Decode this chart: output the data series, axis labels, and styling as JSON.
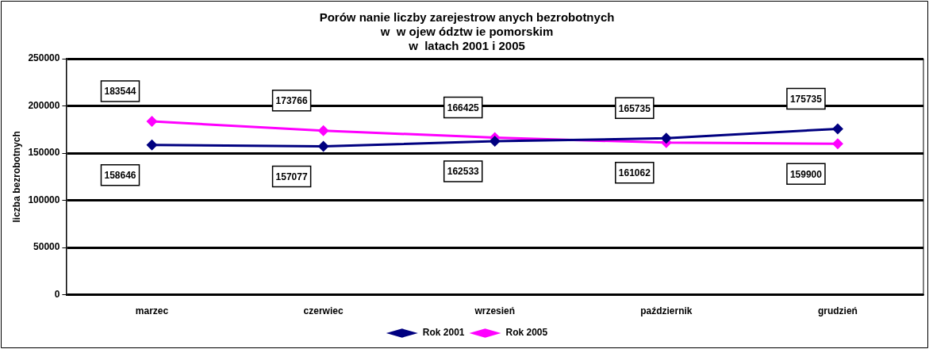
{
  "chart_data": {
    "type": "line",
    "title": "Porów nanie liczby zarejestrow anych bezrobotnych\nw  w ojew ództw ie pomorskim\nw  latach 2001 i 2005",
    "ylabel": "liczba bezrobotnych",
    "categories": [
      "marzec",
      "czerwiec",
      "wrzesień",
      "październik",
      "grudzień"
    ],
    "series": [
      {
        "name": "Rok 2001",
        "color": "#000080",
        "values": [
          158646,
          157077,
          162533,
          165735,
          175735
        ]
      },
      {
        "name": "Rok 2005",
        "color": "#ff00ff",
        "values": [
          183544,
          173766,
          166425,
          161062,
          159900
        ]
      }
    ],
    "ylim": [
      0,
      250000
    ],
    "yticks": [
      0,
      50000,
      100000,
      150000,
      200000,
      250000
    ],
    "grid": "y",
    "legend": "bottom",
    "marker": "diamond",
    "line_style": "solid",
    "data_labels": true
  }
}
